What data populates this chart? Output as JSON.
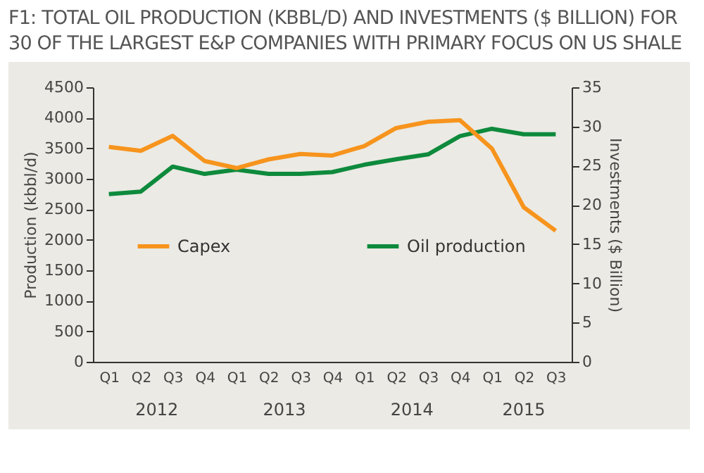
{
  "chart_data": {
    "type": "line",
    "title": [
      "F1:  TOTAL OIL PRODUCTION (KBBL/D) AND INVESTMENTS ($ BILLION) FOR",
      "30 OF THE LARGEST E&P COMPANIES WITH PRIMARY FOCUS ON US SHALE"
    ],
    "ylabel": "Production (kbbl/d)",
    "y2label": "Investments ($ Billion)",
    "categories": [
      "Q1",
      "Q2",
      "Q3",
      "Q4",
      "Q1",
      "Q2",
      "Q3",
      "Q4",
      "Q1",
      "Q2",
      "Q3",
      "Q4",
      "Q1",
      "Q2",
      "Q3"
    ],
    "annotations": [
      "2012",
      "2013",
      "2014",
      "2015"
    ],
    "series": [
      {
        "name": "Capex",
        "color": "#f7941d",
        "axis": "y2",
        "values": [
          27.4,
          26.9,
          28.8,
          25.6,
          24.7,
          25.8,
          26.5,
          26.3,
          27.5,
          29.8,
          30.6,
          30.8,
          27.2,
          19.7,
          16.7
        ]
      },
      {
        "name": "Oil production",
        "color": "#0e8a3c",
        "values": [
          2750,
          2790,
          3200,
          3080,
          3150,
          3080,
          3080,
          3110,
          3230,
          3320,
          3400,
          3700,
          3820,
          3730,
          3730
        ]
      }
    ],
    "ylim": [
      0,
      4500
    ],
    "yticks": [
      0,
      500,
      1000,
      1500,
      2000,
      2500,
      3000,
      3500,
      4000,
      4500
    ],
    "y2lim": [
      0,
      35
    ],
    "y2ticks": [
      0,
      5,
      10,
      15,
      20,
      25,
      30,
      35
    ],
    "grid": false,
    "legend": "bottom"
  }
}
